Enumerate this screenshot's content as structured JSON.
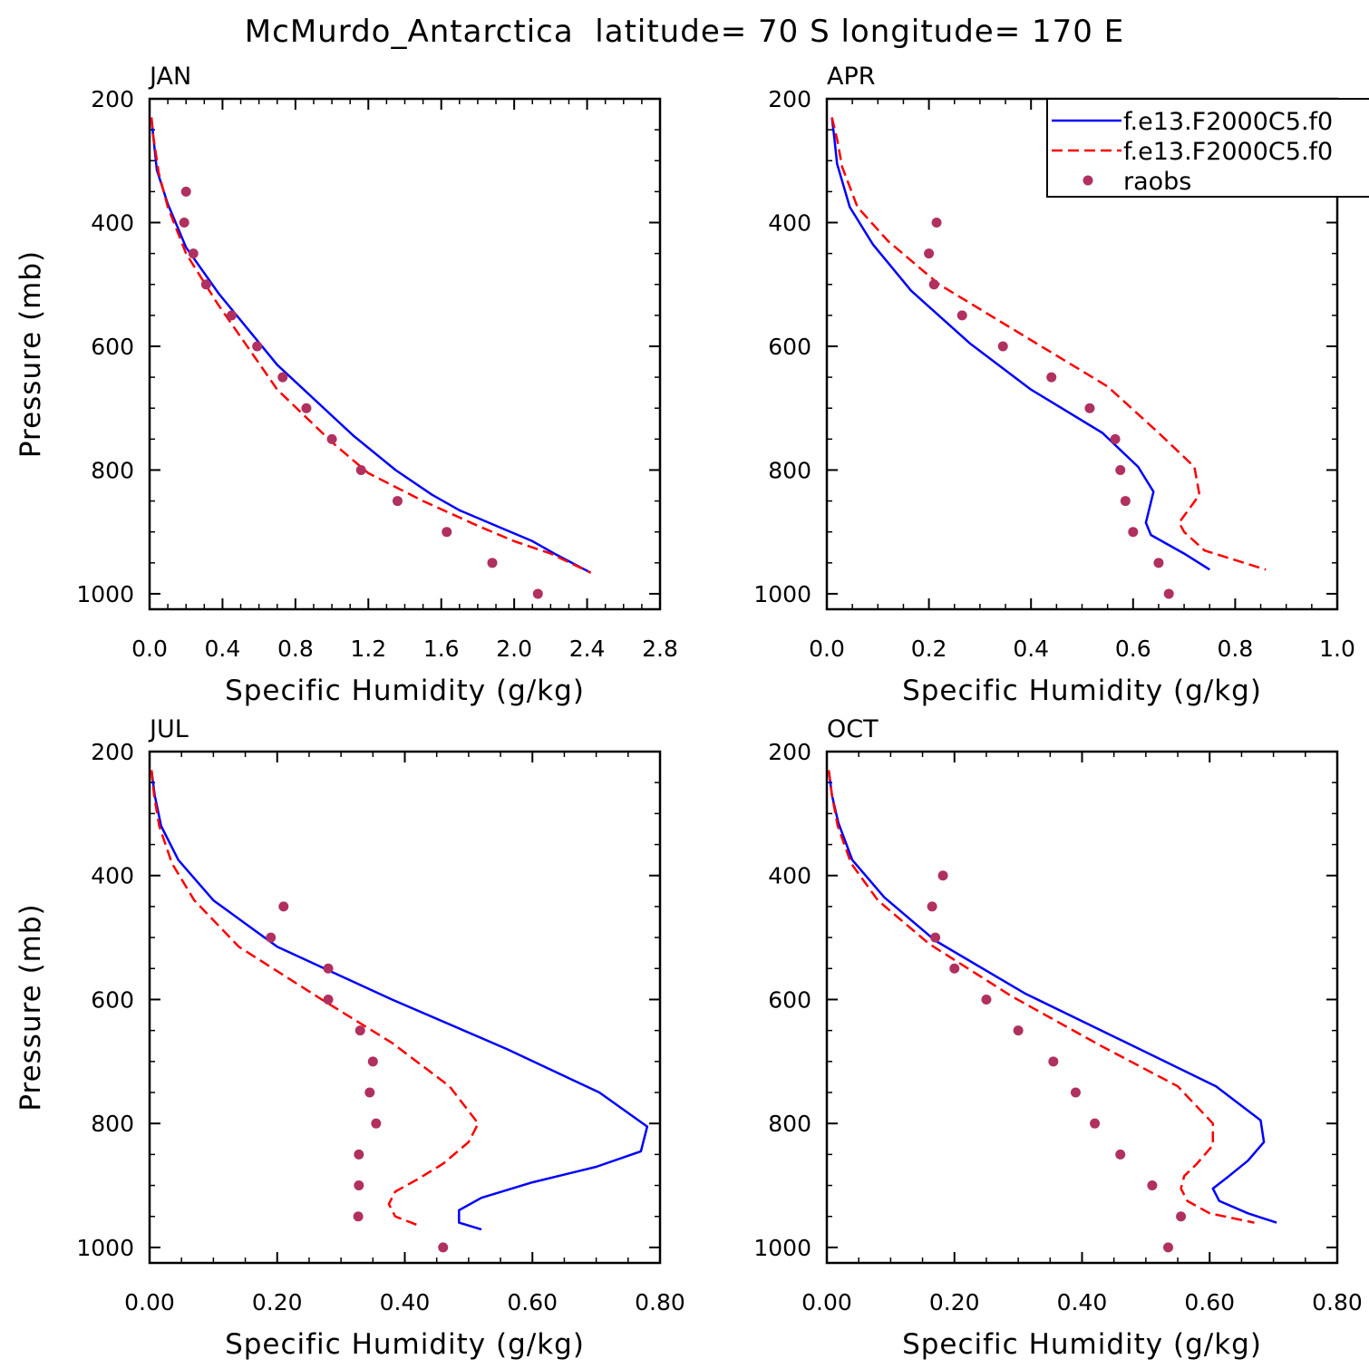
{
  "figure": {
    "title": "McMurdo_Antarctica  latitude= 70 S longitude= 170 E"
  },
  "colors": {
    "series_solid": "#0000ff",
    "series_dashed": "#ff0000",
    "observations": "#b03060",
    "axes": "#000000",
    "background": "#ffffff"
  },
  "legend": {
    "placement": "top-right of APR panel",
    "entries": [
      {
        "label": "f.e13.F2000C5.f0",
        "style": "solid",
        "color_key": "series_solid"
      },
      {
        "label": "f.e13.F2000C5.f0",
        "style": "dashed",
        "color_key": "series_dashed"
      },
      {
        "label": "raobs",
        "style": "dot",
        "color_key": "observations"
      }
    ]
  },
  "chart_data": [
    {
      "type": "line",
      "panel_label": "JAN",
      "xlabel": "Specific Humidity (g/kg)",
      "ylabel": "Pressure (mb)",
      "xlim": [
        0,
        2.8
      ],
      "ylim": [
        1025,
        200
      ],
      "y_inverted": true,
      "xticks": [
        0,
        0.4,
        0.8,
        1.2,
        1.6,
        2.0,
        2.4,
        2.8
      ],
      "xtick_labels": [
        "0.0",
        "0.4",
        "0.8",
        "1.2",
        "1.6",
        "2.0",
        "2.4",
        "2.8"
      ],
      "yticks": [
        200,
        400,
        600,
        800,
        1000
      ],
      "ytick_labels": [
        "200",
        "400",
        "600",
        "800",
        "1000"
      ],
      "show_y_label": true,
      "series": [
        {
          "name": "f.e13.F2000C5.f0",
          "style": "solid",
          "x": [
            0.01,
            0.02,
            0.04,
            0.1,
            0.2,
            0.38,
            0.7,
            1.12,
            1.35,
            1.55,
            1.7,
            1.9,
            2.1,
            2.22,
            2.42
          ],
          "y": [
            230,
            260,
            315,
            370,
            440,
            515,
            630,
            745,
            800,
            840,
            865,
            890,
            915,
            935,
            966
          ]
        },
        {
          "name": "f.e13.F2000C5.f0",
          "style": "dashed",
          "x": [
            0.01,
            0.02,
            0.05,
            0.1,
            0.2,
            0.37,
            0.5,
            0.7,
            1.0,
            1.2,
            1.5,
            1.8,
            2.0,
            2.2,
            2.42
          ],
          "y": [
            230,
            260,
            320,
            375,
            450,
            530,
            585,
            670,
            755,
            805,
            850,
            890,
            915,
            935,
            966
          ]
        }
      ],
      "observations": {
        "x": [
          0.2,
          0.19,
          0.24,
          0.31,
          0.45,
          0.59,
          0.73,
          0.86,
          1.0,
          1.16,
          1.36,
          1.63,
          1.88,
          2.13
        ],
        "y": [
          350,
          400,
          450,
          500,
          550,
          600,
          650,
          700,
          750,
          800,
          850,
          900,
          950,
          1000
        ]
      }
    },
    {
      "type": "line",
      "panel_label": "APR",
      "xlabel": "Specific Humidity (g/kg)",
      "ylabel": "",
      "xlim": [
        0,
        1.0
      ],
      "ylim": [
        1025,
        200
      ],
      "y_inverted": true,
      "xticks": [
        0,
        0.2,
        0.4,
        0.6,
        0.8,
        1.0
      ],
      "xtick_labels": [
        "0.0",
        "0.2",
        "0.4",
        "0.6",
        "0.8",
        "1.0"
      ],
      "yticks": [
        200,
        400,
        600,
        800,
        1000
      ],
      "ytick_labels": [
        "200",
        "400",
        "600",
        "800",
        "1000"
      ],
      "show_y_label": false,
      "series": [
        {
          "name": "f.e13.F2000C5.f0",
          "style": "solid",
          "x": [
            0.01,
            0.015,
            0.02,
            0.045,
            0.09,
            0.165,
            0.28,
            0.4,
            0.54,
            0.61,
            0.64,
            0.625,
            0.635,
            0.7,
            0.75
          ],
          "y": [
            230,
            265,
            305,
            375,
            435,
            510,
            595,
            670,
            740,
            795,
            835,
            885,
            905,
            935,
            961
          ]
        },
        {
          "name": "f.e13.F2000C5.f0",
          "style": "dashed",
          "x": [
            0.01,
            0.02,
            0.03,
            0.06,
            0.12,
            0.22,
            0.38,
            0.55,
            0.65,
            0.72,
            0.73,
            0.69,
            0.7,
            0.74,
            0.86
          ],
          "y": [
            230,
            265,
            310,
            375,
            430,
            500,
            580,
            665,
            740,
            795,
            840,
            885,
            900,
            930,
            961
          ]
        }
      ],
      "observations": {
        "x": [
          0.215,
          0.2,
          0.21,
          0.265,
          0.345,
          0.44,
          0.515,
          0.565,
          0.575,
          0.585,
          0.6,
          0.65,
          0.67
        ],
        "y": [
          400,
          450,
          500,
          550,
          600,
          650,
          700,
          750,
          800,
          850,
          900,
          950,
          1000
        ]
      }
    },
    {
      "type": "line",
      "panel_label": "JUL",
      "xlabel": "Specific Humidity (g/kg)",
      "ylabel": "Pressure (mb)",
      "xlim": [
        0,
        0.8
      ],
      "ylim": [
        1025,
        200
      ],
      "y_inverted": true,
      "xticks": [
        0,
        0.2,
        0.4,
        0.6,
        0.8
      ],
      "xtick_labels": [
        "0.00",
        "0.20",
        "0.40",
        "0.60",
        "0.80"
      ],
      "yticks": [
        200,
        400,
        600,
        800,
        1000
      ],
      "ytick_labels": [
        "200",
        "400",
        "600",
        "800",
        "1000"
      ],
      "show_y_label": true,
      "series": [
        {
          "name": "f.e13.F2000C5.f0",
          "style": "solid",
          "x": [
            0.003,
            0.008,
            0.018,
            0.045,
            0.1,
            0.2,
            0.38,
            0.56,
            0.705,
            0.78,
            0.77,
            0.7,
            0.6,
            0.52,
            0.485,
            0.485,
            0.52
          ],
          "y": [
            230,
            270,
            320,
            375,
            440,
            515,
            600,
            680,
            750,
            805,
            845,
            870,
            895,
            920,
            940,
            960,
            971
          ]
        },
        {
          "name": "f.e13.F2000C5.f0",
          "style": "dashed",
          "x": [
            0.003,
            0.007,
            0.015,
            0.035,
            0.07,
            0.14,
            0.27,
            0.38,
            0.47,
            0.515,
            0.5,
            0.46,
            0.42,
            0.385,
            0.375,
            0.385,
            0.425
          ],
          "y": [
            230,
            270,
            320,
            380,
            440,
            515,
            600,
            670,
            740,
            800,
            830,
            865,
            890,
            910,
            930,
            950,
            966
          ]
        }
      ],
      "observations": {
        "x": [
          0.21,
          0.19,
          0.28,
          0.28,
          0.33,
          0.35,
          0.345,
          0.355,
          0.328,
          0.328,
          0.327,
          0.46
        ],
        "y": [
          450,
          500,
          550,
          600,
          650,
          700,
          750,
          800,
          850,
          900,
          950,
          1000
        ]
      }
    },
    {
      "type": "line",
      "panel_label": "OCT",
      "xlabel": "Specific Humidity (g/kg)",
      "ylabel": "",
      "xlim": [
        0,
        0.8
      ],
      "ylim": [
        1025,
        200
      ],
      "y_inverted": true,
      "xticks": [
        0,
        0.2,
        0.4,
        0.6,
        0.8
      ],
      "xtick_labels": [
        "0.00",
        "0.20",
        "0.40",
        "0.60",
        "0.80"
      ],
      "yticks": [
        200,
        400,
        600,
        800,
        1000
      ],
      "ytick_labels": [
        "200",
        "400",
        "600",
        "800",
        "1000"
      ],
      "show_y_label": false,
      "series": [
        {
          "name": "f.e13.F2000C5.f0",
          "style": "solid",
          "x": [
            0.003,
            0.008,
            0.018,
            0.04,
            0.09,
            0.17,
            0.31,
            0.47,
            0.61,
            0.68,
            0.685,
            0.66,
            0.63,
            0.605,
            0.615,
            0.66,
            0.705
          ],
          "y": [
            230,
            270,
            315,
            375,
            435,
            505,
            590,
            670,
            740,
            795,
            830,
            860,
            885,
            905,
            925,
            945,
            960
          ]
        },
        {
          "name": "f.e13.F2000C5.f0",
          "style": "dashed",
          "x": [
            0.003,
            0.008,
            0.017,
            0.038,
            0.08,
            0.16,
            0.29,
            0.43,
            0.55,
            0.605,
            0.605,
            0.58,
            0.56,
            0.555,
            0.565,
            0.6,
            0.67
          ],
          "y": [
            230,
            270,
            320,
            380,
            440,
            510,
            595,
            675,
            740,
            800,
            835,
            865,
            885,
            905,
            925,
            945,
            960
          ]
        }
      ],
      "observations": {
        "x": [
          0.182,
          0.165,
          0.17,
          0.2,
          0.25,
          0.3,
          0.355,
          0.39,
          0.42,
          0.46,
          0.51,
          0.555,
          0.535
        ],
        "y": [
          400,
          450,
          500,
          550,
          600,
          650,
          700,
          750,
          800,
          850,
          900,
          950,
          1000
        ]
      }
    }
  ]
}
